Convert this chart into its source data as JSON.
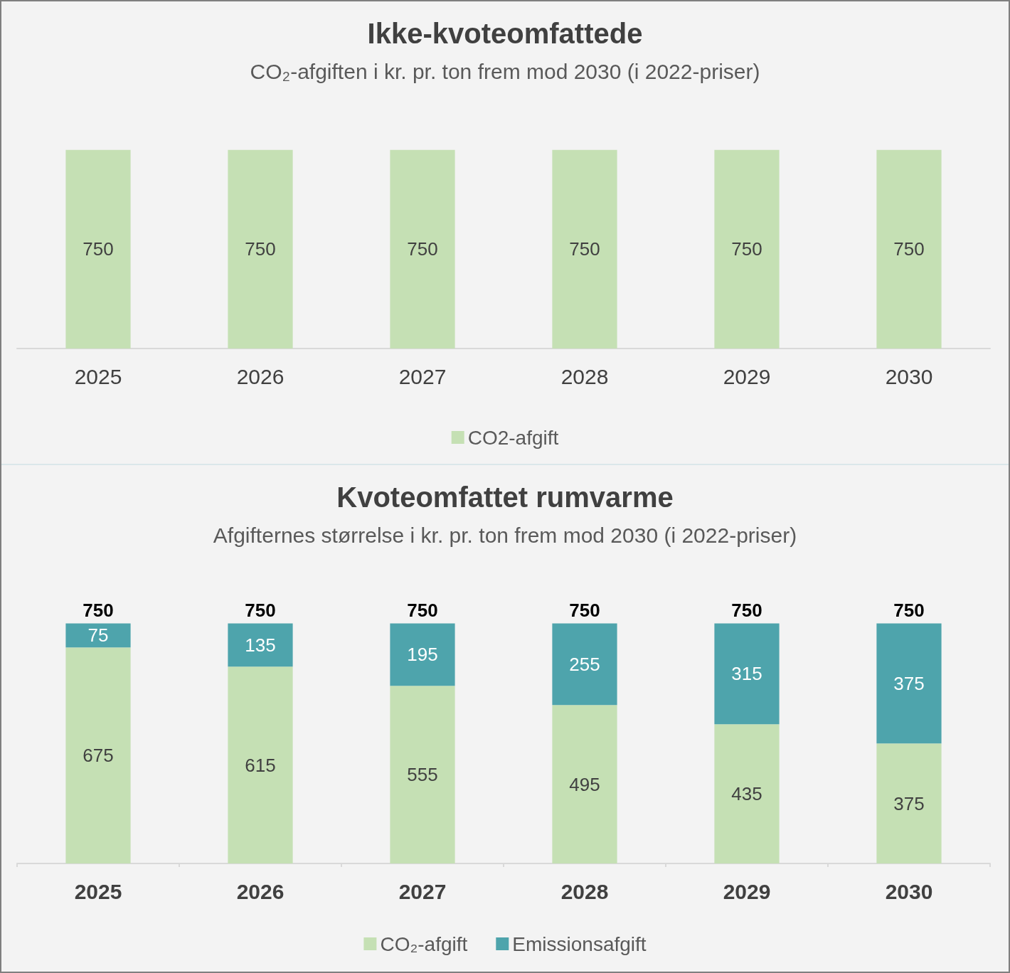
{
  "chart_data": [
    {
      "type": "bar",
      "title": "Ikke-kvoteomfattede",
      "subtitle": "CO₂-afgiften i kr. pr. ton frem mod 2030 (i 2022-priser)",
      "categories": [
        "2025",
        "2026",
        "2027",
        "2028",
        "2029",
        "2030"
      ],
      "series": [
        {
          "name": "CO2-afgift",
          "color": "#c5e0b4",
          "values": [
            750,
            750,
            750,
            750,
            750,
            750
          ]
        }
      ],
      "data_labels": true,
      "legend": "bottom",
      "tick_labels": "x"
    },
    {
      "type": "bar",
      "title": "Kvoteomfattet rumvarme",
      "subtitle": "Afgifternes størrelse i kr. pr. ton frem mod 2030 (i 2022-priser)",
      "categories": [
        "2025",
        "2026",
        "2027",
        "2028",
        "2029",
        "2030"
      ],
      "stacked": true,
      "series": [
        {
          "name": "CO₂-afgift",
          "color": "#c5e0b4",
          "values": [
            675,
            615,
            555,
            495,
            435,
            375
          ]
        },
        {
          "name": "Emissionsafgift",
          "color": "#4ea4ac",
          "values": [
            75,
            135,
            195,
            255,
            315,
            375
          ]
        }
      ],
      "totals": [
        "750",
        "750",
        "750",
        "750",
        "750",
        "750"
      ],
      "data_labels": true,
      "legend": "bottom",
      "tick_labels": "x"
    }
  ]
}
